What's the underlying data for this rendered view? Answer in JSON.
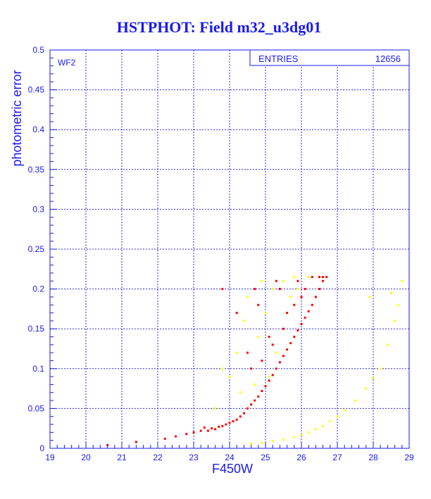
{
  "colors": {
    "axis": "#1a1aee",
    "grid": "#2a2ae6",
    "primary_points": "#ff0000",
    "secondary_points": "#ffff00"
  },
  "chart_data": {
    "type": "scatter",
    "title": "HSTPHOT: Field m32_u3dg01",
    "xlabel": "F450W",
    "ylabel": "photometric error",
    "panel_label": "WF2",
    "stats_label": "ENTRIES",
    "stats_value": "12656",
    "xlim": [
      19,
      29
    ],
    "ylim": [
      0,
      0.5
    ],
    "grid": true,
    "x_ticks": [
      "19",
      "20",
      "21",
      "22",
      "23",
      "24",
      "25",
      "26",
      "27",
      "28",
      "29"
    ],
    "y_ticks": [
      "0",
      "0.05",
      "0.1",
      "0.15",
      "0.2",
      "0.25",
      "0.3",
      "0.35",
      "0.4",
      "0.45",
      "0.5"
    ],
    "series": [
      {
        "color": "#ff0000",
        "points": [
          [
            22.2,
            0.012
          ],
          [
            22.8,
            0.018
          ],
          [
            23.2,
            0.022
          ],
          [
            23.4,
            0.022
          ],
          [
            23.5,
            0.025
          ],
          [
            23.6,
            0.024
          ],
          [
            23.7,
            0.027
          ],
          [
            23.8,
            0.028
          ],
          [
            23.9,
            0.03
          ],
          [
            24.0,
            0.032
          ],
          [
            24.1,
            0.034
          ],
          [
            24.2,
            0.036
          ],
          [
            24.3,
            0.04
          ],
          [
            24.4,
            0.044
          ],
          [
            24.5,
            0.05
          ],
          [
            24.6,
            0.055
          ],
          [
            24.7,
            0.06
          ],
          [
            24.8,
            0.065
          ],
          [
            24.9,
            0.072
          ],
          [
            25.0,
            0.078
          ],
          [
            25.1,
            0.085
          ],
          [
            25.2,
            0.092
          ],
          [
            25.3,
            0.1
          ],
          [
            25.4,
            0.108
          ],
          [
            25.5,
            0.116
          ],
          [
            25.6,
            0.124
          ],
          [
            25.7,
            0.132
          ],
          [
            25.8,
            0.14
          ],
          [
            25.9,
            0.148
          ],
          [
            26.0,
            0.156
          ],
          [
            26.1,
            0.164
          ],
          [
            26.2,
            0.172
          ],
          [
            26.3,
            0.18
          ],
          [
            26.4,
            0.19
          ],
          [
            26.5,
            0.2
          ],
          [
            26.6,
            0.21
          ],
          [
            26.7,
            0.215
          ],
          [
            23.8,
            0.2
          ],
          [
            24.2,
            0.17
          ],
          [
            24.5,
            0.12
          ],
          [
            24.8,
            0.18
          ],
          [
            25.1,
            0.14
          ],
          [
            25.4,
            0.2
          ],
          [
            25.6,
            0.17
          ],
          [
            25.9,
            0.21
          ],
          [
            26.1,
            0.2
          ],
          [
            24.6,
            0.1
          ],
          [
            24.9,
            0.11
          ],
          [
            25.2,
            0.13
          ],
          [
            25.5,
            0.15
          ],
          [
            25.8,
            0.18
          ],
          [
            26.0,
            0.19
          ],
          [
            26.3,
            0.215
          ],
          [
            26.5,
            0.215
          ],
          [
            26.6,
            0.215
          ],
          [
            23.0,
            0.02
          ],
          [
            23.3,
            0.026
          ],
          [
            22.5,
            0.015
          ],
          [
            21.4,
            0.008
          ],
          [
            20.6,
            0.004
          ],
          [
            24.7,
            0.2
          ],
          [
            25.3,
            0.21
          ]
        ]
      },
      {
        "color": "#ffff00",
        "points": [
          [
            24.6,
            0.006
          ],
          [
            24.9,
            0.007
          ],
          [
            25.2,
            0.009
          ],
          [
            25.5,
            0.011
          ],
          [
            25.8,
            0.014
          ],
          [
            26.0,
            0.017
          ],
          [
            26.2,
            0.02
          ],
          [
            26.4,
            0.024
          ],
          [
            26.6,
            0.028
          ],
          [
            26.8,
            0.034
          ],
          [
            27.0,
            0.04
          ],
          [
            27.2,
            0.048
          ],
          [
            27.5,
            0.06
          ],
          [
            27.8,
            0.075
          ],
          [
            28.0,
            0.088
          ],
          [
            28.2,
            0.1
          ],
          [
            28.4,
            0.13
          ],
          [
            28.6,
            0.16
          ],
          [
            28.7,
            0.18
          ],
          [
            28.8,
            0.21
          ],
          [
            27.9,
            0.19
          ],
          [
            28.5,
            0.195
          ],
          [
            24.4,
            0.16
          ],
          [
            24.5,
            0.19
          ],
          [
            24.8,
            0.14
          ],
          [
            25.0,
            0.17
          ],
          [
            25.2,
            0.2
          ],
          [
            25.3,
            0.12
          ],
          [
            25.5,
            0.21
          ],
          [
            25.7,
            0.19
          ],
          [
            25.9,
            0.2
          ],
          [
            24.2,
            0.12
          ],
          [
            24.0,
            0.09
          ],
          [
            23.8,
            0.1
          ],
          [
            24.3,
            0.07
          ],
          [
            25.1,
            0.09
          ],
          [
            24.7,
            0.08
          ],
          [
            23.6,
            0.05
          ],
          [
            24.9,
            0.21
          ],
          [
            25.8,
            0.215
          ],
          [
            26.2,
            0.215
          ]
        ]
      }
    ]
  }
}
